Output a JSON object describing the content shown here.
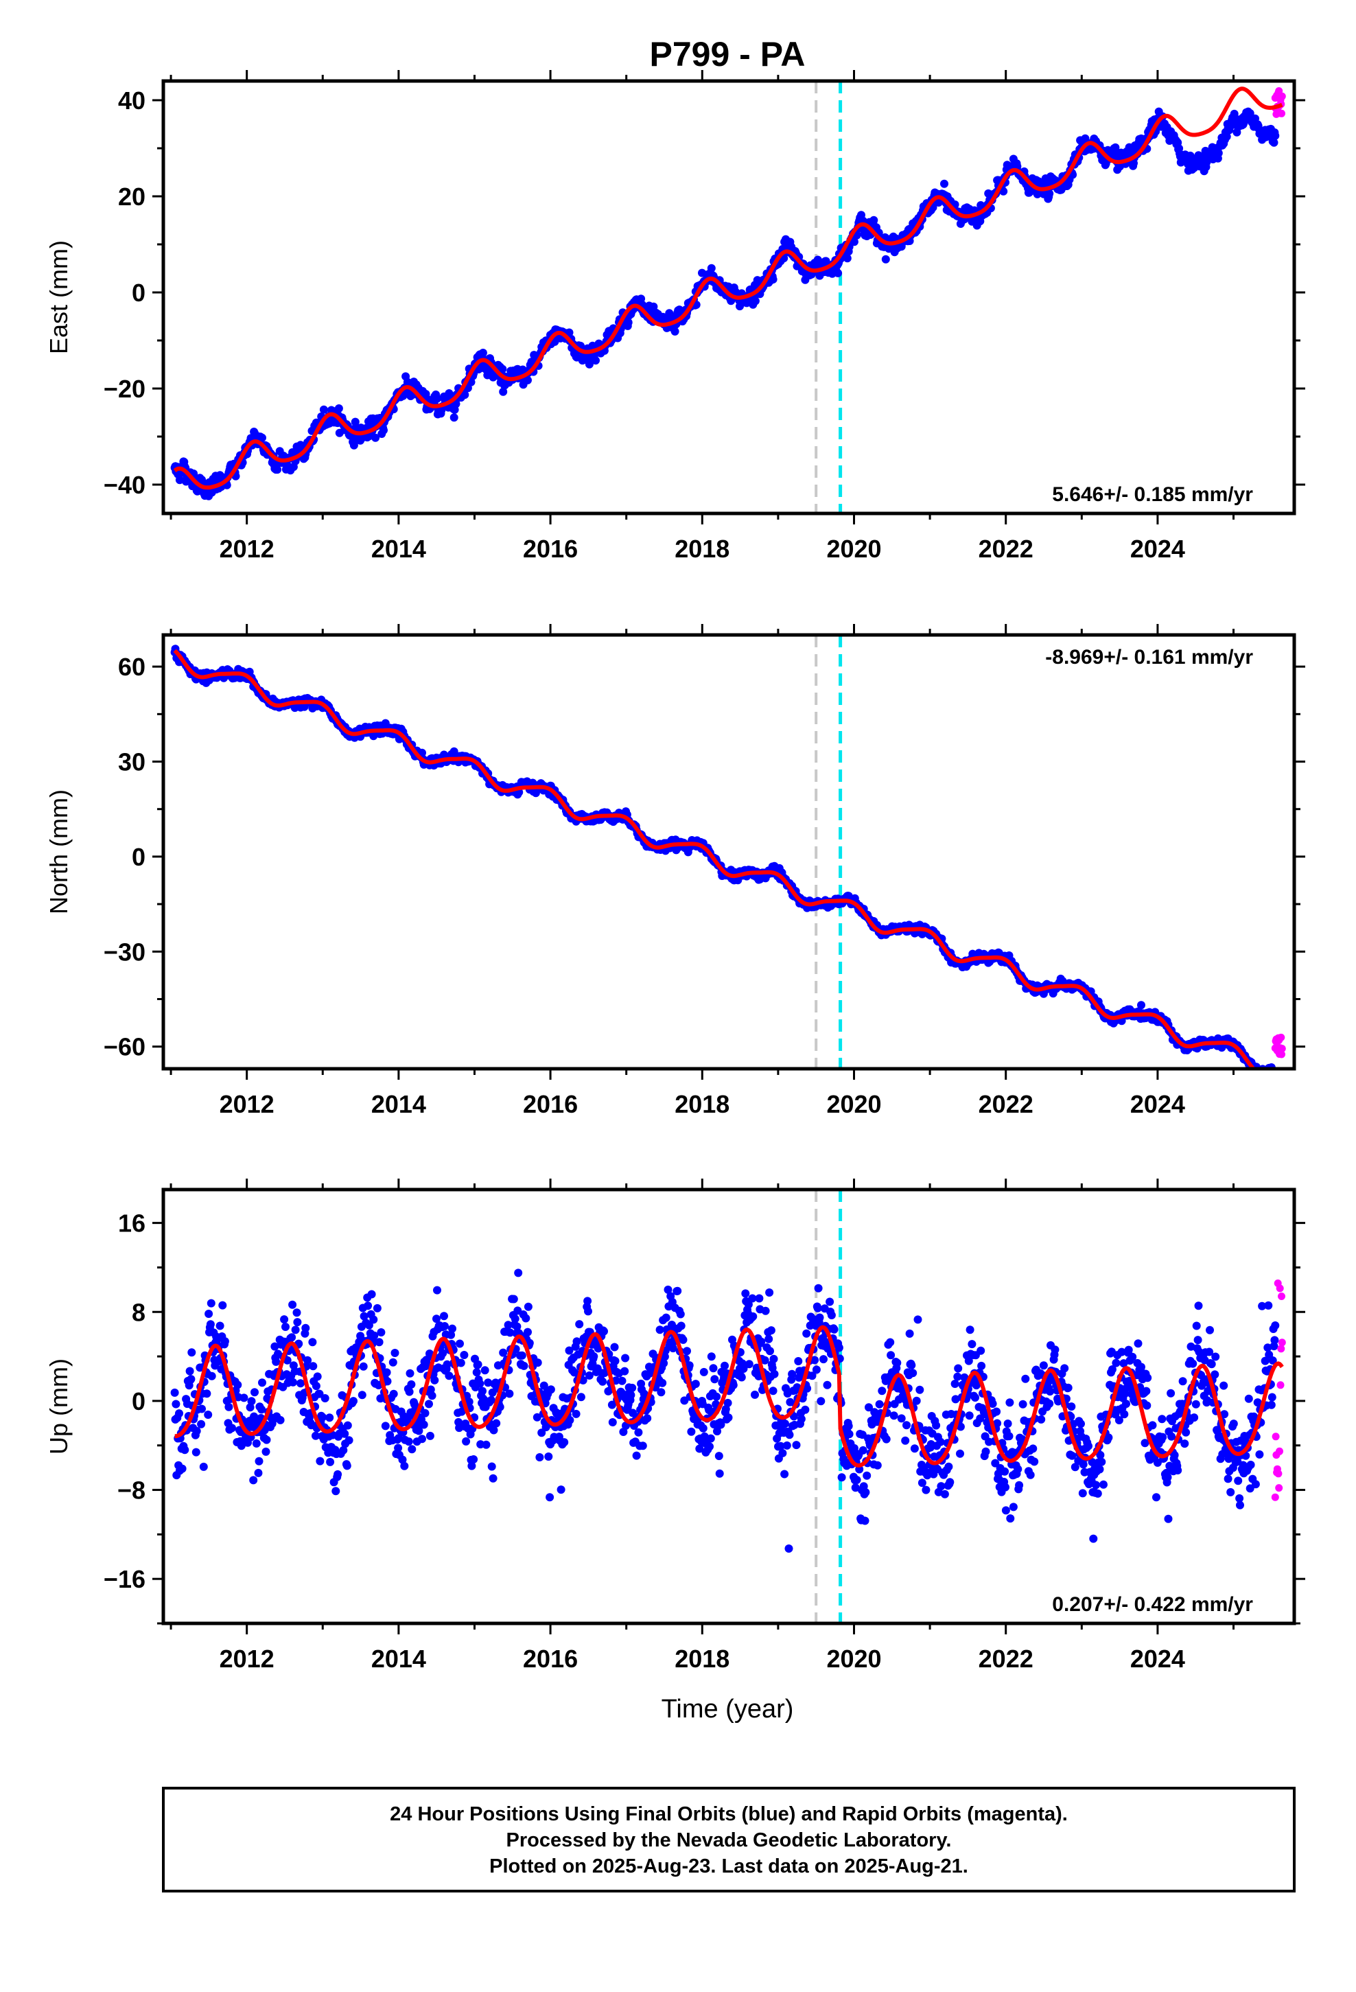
{
  "figure": {
    "title": "P799 - PA",
    "xlabel": "Time (year)",
    "caption": [
      "24 Hour Positions Using Final Orbits (blue) and Rapid Orbits (magenta).",
      "Processed by the Nevada Geodetic Laboratory.",
      "Plotted on 2025-Aug-23. Last data on 2025-Aug-21."
    ]
  },
  "colors": {
    "final_orbits": "#0000ff",
    "rapid_orbits": "#ff00ff",
    "model_fit": "#ff0000",
    "event_gray": "#c8c8c8",
    "event_cyan": "#00e5ee"
  },
  "chart_data": [
    {
      "type": "scatter",
      "ylabel": "East (mm)",
      "rate_label": "5.646+/- 0.185 mm/yr",
      "rate_position": "bottom-right",
      "xlim": [
        2010.9,
        2025.8
      ],
      "ylim": [
        -46,
        44
      ],
      "xticks": [
        2012,
        2014,
        2016,
        2018,
        2020,
        2022,
        2024
      ],
      "yticks": [
        -40,
        -20,
        0,
        20,
        40
      ],
      "ytick_labels": [
        "−40",
        "−20",
        "0",
        "20",
        "40"
      ],
      "events": [
        {
          "x": 2019.5,
          "color": "gray"
        },
        {
          "x": 2019.82,
          "color": "cyan"
        }
      ],
      "fit": {
        "t0": 2018.0,
        "intercept": -1.5,
        "rate": 5.646,
        "annual_amp": 3.2,
        "annual_phase": 1.0,
        "semiannual_amp": 0.6,
        "semiannual_phase": 0.5,
        "offsets": [],
        "noise": 1.3
      },
      "anomaly": {
        "x_start": 2024.0,
        "x_end": 2025.62,
        "delta": -5.5
      },
      "data_range": [
        2011.05,
        2025.55
      ],
      "rapid": {
        "x_start": 2025.55,
        "x_end": 2025.64,
        "y_values": [
          37,
          42
        ]
      },
      "grid": false
    },
    {
      "type": "scatter",
      "ylabel": "North (mm)",
      "rate_label": "-8.969+/- 0.161 mm/yr",
      "rate_position": "top-right",
      "xlim": [
        2010.9,
        2025.8
      ],
      "ylim": [
        -67,
        70
      ],
      "xticks": [
        2012,
        2014,
        2016,
        2018,
        2020,
        2022,
        2024
      ],
      "yticks": [
        -60,
        -30,
        0,
        30,
        60
      ],
      "ytick_labels": [
        "−60",
        "−30",
        "0",
        "30",
        "60"
      ],
      "events": [
        {
          "x": 2019.5,
          "color": "gray"
        },
        {
          "x": 2019.82,
          "color": "cyan"
        }
      ],
      "fit": {
        "t0": 2018.0,
        "intercept": 0.5,
        "rate": -8.969,
        "annual_amp": 2.8,
        "annual_phase": 2.2,
        "semiannual_amp": 0.6,
        "semiannual_phase": 0.9,
        "offsets": [],
        "noise": 1.0
      },
      "anomaly": null,
      "data_range": [
        2011.05,
        2025.55
      ],
      "rapid": {
        "x_start": 2025.55,
        "x_end": 2025.64,
        "y_values": [
          -63,
          -57
        ]
      },
      "grid": false
    },
    {
      "type": "scatter",
      "ylabel": "Up (mm)",
      "rate_label": "0.207+/- 0.422 mm/yr",
      "rate_position": "bottom-right",
      "xlim": [
        2010.9,
        2025.8
      ],
      "ylim": [
        -20,
        19
      ],
      "xticks": [
        2012,
        2014,
        2016,
        2018,
        2020,
        2022,
        2024
      ],
      "yticks": [
        -16,
        -8,
        0,
        8,
        16
      ],
      "ytick_labels": [
        "−16",
        "−8",
        "0",
        "8",
        "16"
      ],
      "events": [
        {
          "x": 2019.5,
          "color": "gray"
        },
        {
          "x": 2019.82,
          "color": "cyan"
        }
      ],
      "fit": {
        "t0": 2018.0,
        "intercept": 1.8,
        "rate": 0.207,
        "annual_amp": 4.0,
        "annual_phase": 4.2,
        "semiannual_amp": 0.5,
        "semiannual_phase": 0.3,
        "offsets": [
          {
            "x": 2019.82,
            "delta": -4.5
          }
        ],
        "noise": 2.8
      },
      "anomaly": null,
      "data_range": [
        2011.05,
        2025.55
      ],
      "rapid": {
        "x_start": 2025.55,
        "x_end": 2025.64,
        "y_values": [
          -9,
          11
        ]
      },
      "grid": false
    }
  ]
}
